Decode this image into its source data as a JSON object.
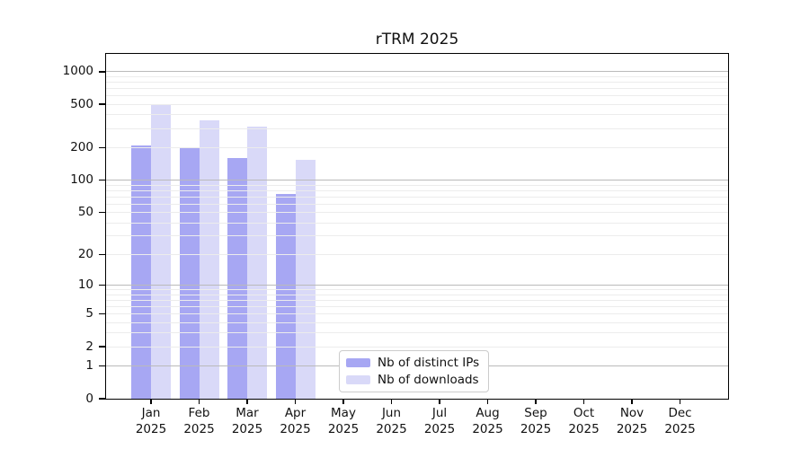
{
  "chart_data": {
    "type": "bar",
    "title": "rTRM 2025",
    "categories": [
      "Jan",
      "Feb",
      "Mar",
      "Apr",
      "May",
      "Jun",
      "Jul",
      "Aug",
      "Sep",
      "Oct",
      "Nov",
      "Dec"
    ],
    "category_year": "2025",
    "series": [
      {
        "name": "Nb of distinct IPs",
        "color": "#a7a7f3",
        "values": [
          210,
          200,
          160,
          75,
          0,
          0,
          0,
          0,
          0,
          0,
          0,
          0
        ]
      },
      {
        "name": "Nb of downloads",
        "color": "#d9d9f8",
        "values": [
          500,
          355,
          310,
          155,
          0,
          0,
          0,
          0,
          0,
          0,
          0,
          0
        ]
      }
    ],
    "yscale": "log1p",
    "ylim": [
      0,
      1455
    ],
    "yticks": [
      0,
      1,
      2,
      5,
      10,
      20,
      50,
      100,
      200,
      500,
      1000
    ],
    "major_gridlines": [
      1,
      10,
      100,
      1000
    ],
    "grid": true,
    "legend_position": "inside-bottom-center",
    "colors": {
      "background": "#ffffff",
      "axis": "#000000",
      "text": "#111111",
      "major_grid": "#bababa",
      "minor_grid": "#ececec",
      "legend_border": "#cccccc"
    }
  }
}
